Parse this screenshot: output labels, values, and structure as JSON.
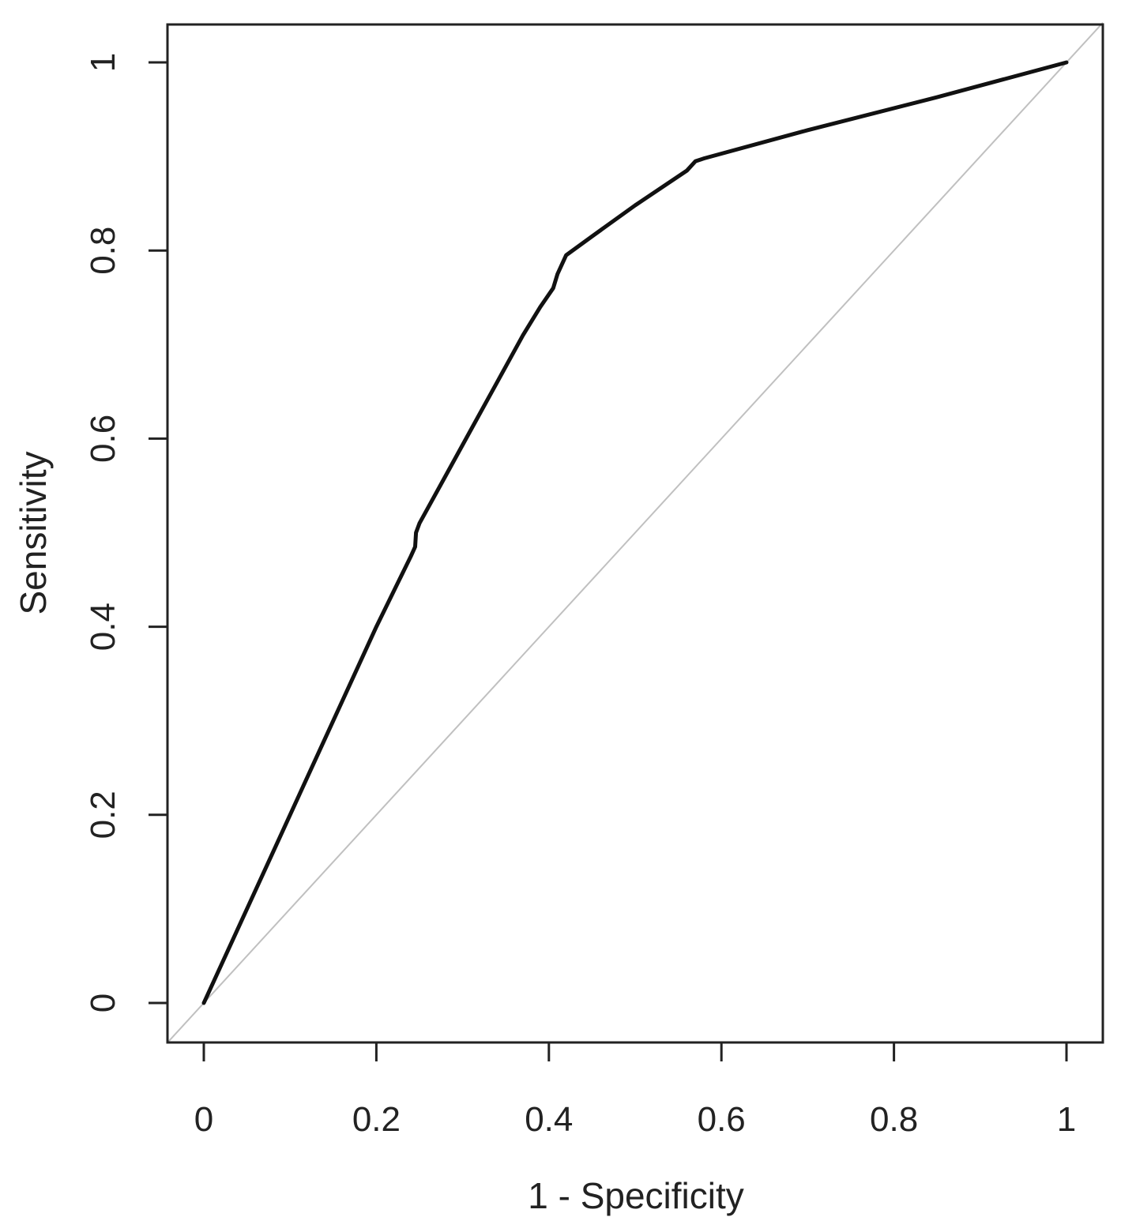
{
  "chart_data": {
    "type": "line",
    "title": "",
    "xlabel": "1 - Specificity",
    "ylabel": "Sensitivity",
    "xlim": [
      0,
      1
    ],
    "ylim": [
      0,
      1
    ],
    "x_ticks": [
      "0",
      "0.2",
      "0.4",
      "0.6",
      "0.8",
      "1"
    ],
    "y_ticks": [
      "0",
      "0.2",
      "0.4",
      "0.6",
      "0.8",
      "1"
    ],
    "grid": false,
    "legend": "none",
    "series": [
      {
        "x": [
          0.0,
          0.04,
          0.08,
          0.12,
          0.16,
          0.2,
          0.24,
          0.245,
          0.246,
          0.25,
          0.28,
          0.31,
          0.34,
          0.37,
          0.39,
          0.405,
          0.41,
          0.42,
          0.45,
          0.5,
          0.56,
          0.57,
          0.58,
          0.7,
          0.85,
          1.0
        ],
        "y": [
          0.0,
          0.08,
          0.16,
          0.24,
          0.32,
          0.4,
          0.475,
          0.485,
          0.5,
          0.51,
          0.56,
          0.61,
          0.66,
          0.71,
          0.74,
          0.76,
          0.775,
          0.795,
          0.815,
          0.848,
          0.885,
          0.895,
          0.898,
          0.928,
          0.963,
          1.0
        ],
        "color": "#111111"
      },
      {
        "x": [
          0,
          1
        ],
        "y": [
          0,
          1
        ],
        "color": "#c0c0c0"
      }
    ]
  }
}
